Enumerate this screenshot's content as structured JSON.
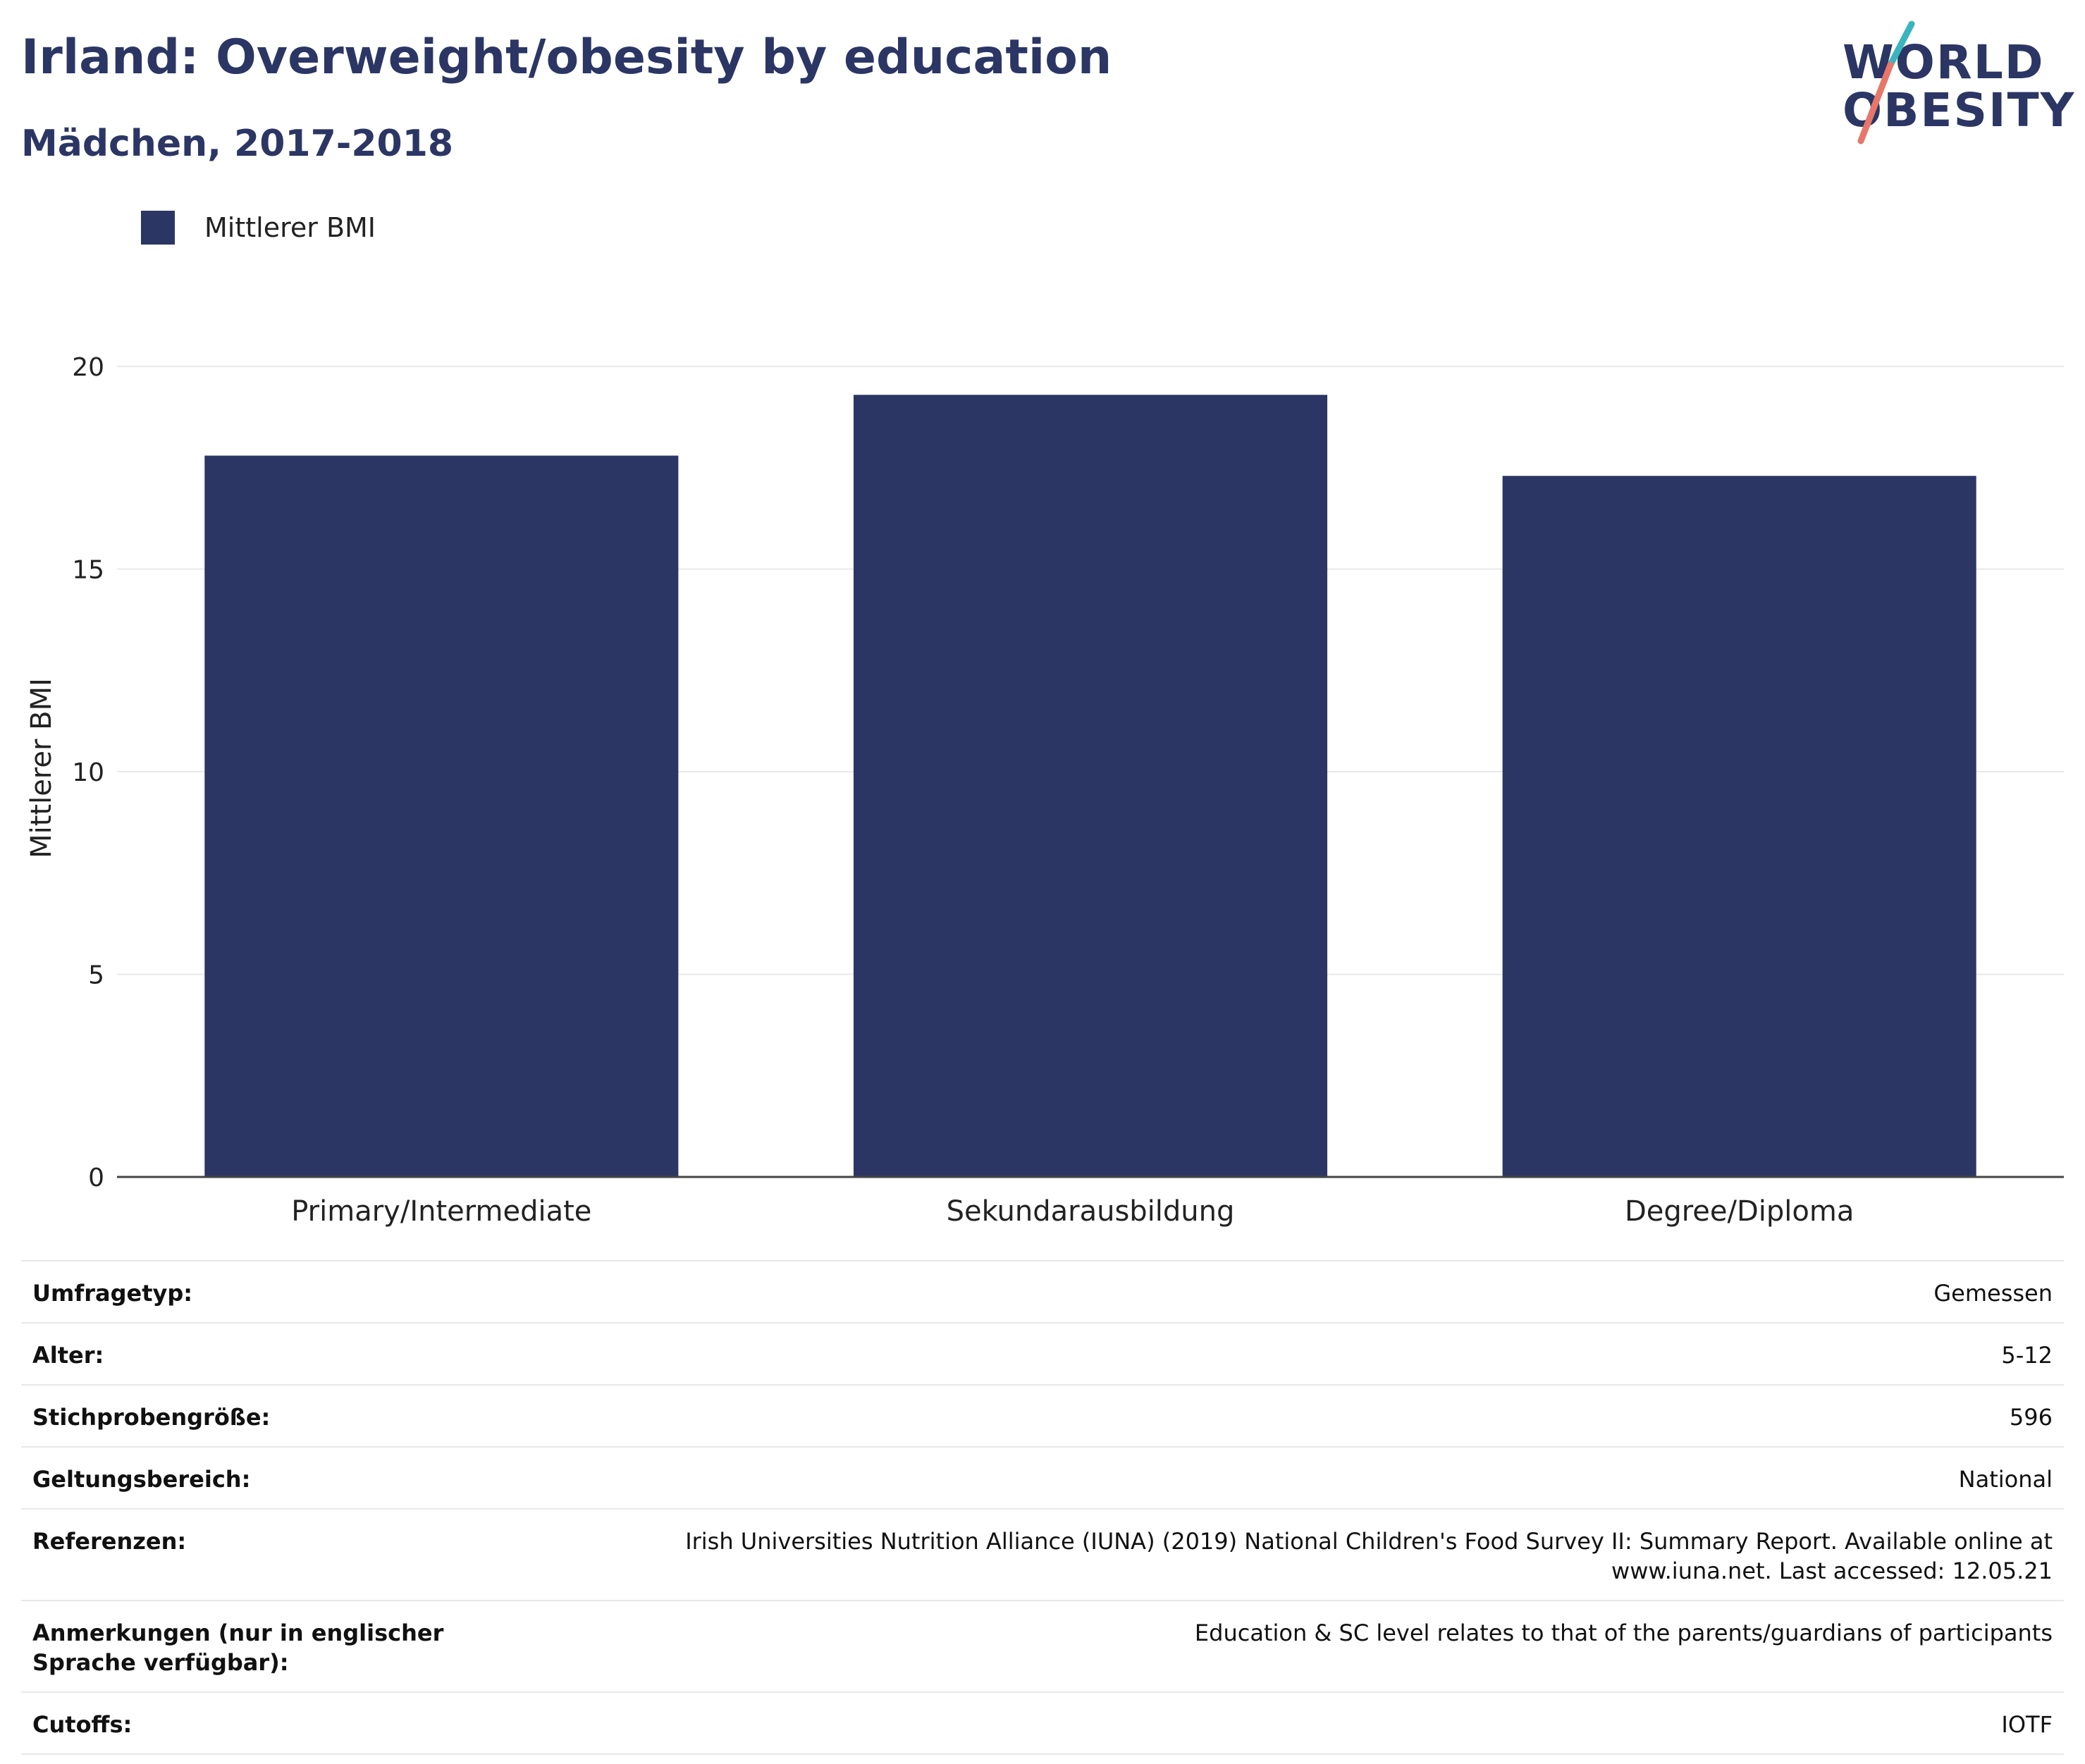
{
  "header": {
    "title": "Irland: Overweight/obesity by education",
    "subtitle": "Mädchen, 2017-2018"
  },
  "logo": {
    "line1": "WORLD",
    "line2": "OBESITY",
    "accent_colors": [
      "#3bb5bd",
      "#e8766a"
    ]
  },
  "legend": {
    "label": "Mittlerer BMI",
    "color": "#2b3664"
  },
  "chart_data": {
    "type": "bar",
    "categories": [
      "Primary/Intermediate",
      "Sekundarausbildung",
      "Degree/Diploma"
    ],
    "series": [
      {
        "name": "Mittlerer BMI",
        "values": [
          17.8,
          19.3,
          17.3
        ],
        "color": "#2b3664"
      }
    ],
    "title": "Irland: Overweight/obesity by education",
    "subtitle": "Mädchen, 2017-2018",
    "xlabel": "",
    "ylabel": "Mittlerer BMI",
    "ylim": [
      0,
      20
    ],
    "yticks": [
      0,
      5,
      10,
      15,
      20
    ],
    "grid": true,
    "legend_position": "top-left"
  },
  "meta": {
    "rows": [
      {
        "label": "Umfragetyp:",
        "value": "Gemessen"
      },
      {
        "label": "Alter:",
        "value": "5-12"
      },
      {
        "label": "Stichprobengröße:",
        "value": "596"
      },
      {
        "label": "Geltungsbereich:",
        "value": "National"
      },
      {
        "label": "Referenzen:",
        "value": "Irish Universities Nutrition Alliance (IUNA) (2019) National Children's Food Survey II: Summary Report. Available online at www.iuna.net. Last accessed: 12.05.21"
      },
      {
        "label": "Anmerkungen (nur in englischer Sprache verfügbar):",
        "value": "Education & SC level relates to that of the parents/guardians of participants"
      },
      {
        "label": "Cutoffs:",
        "value": "IOTF"
      }
    ]
  }
}
